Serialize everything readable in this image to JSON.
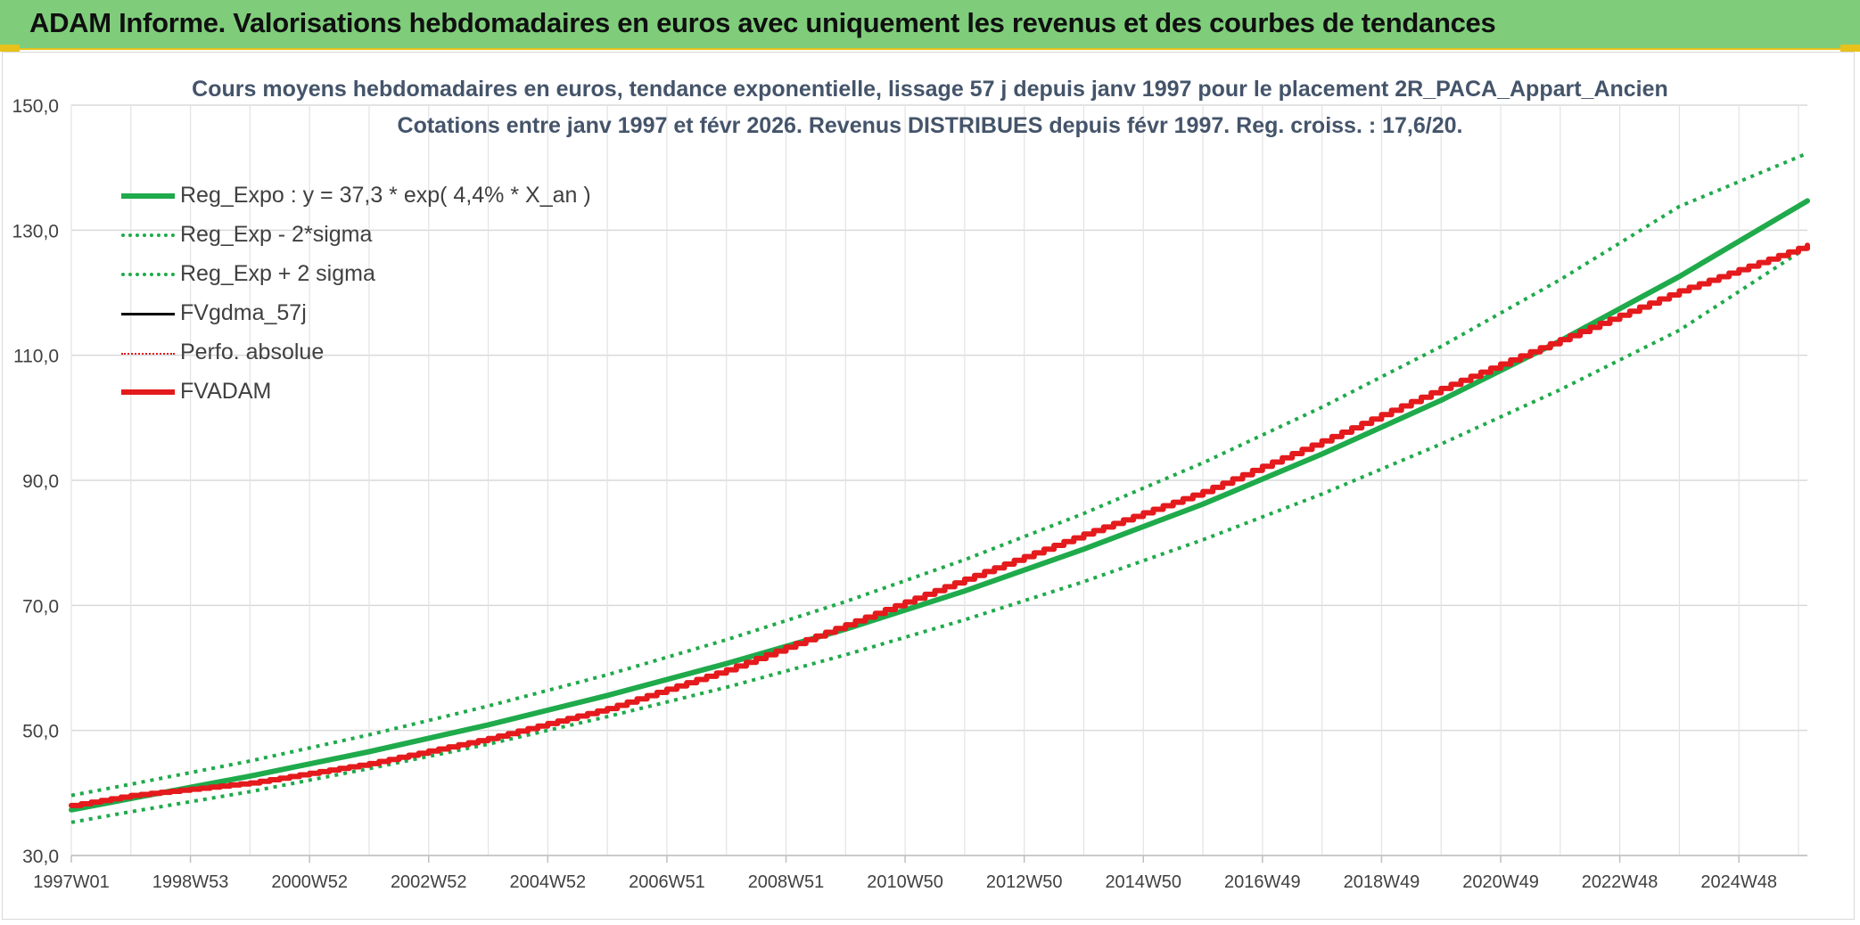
{
  "banner": {
    "title": "ADAM Informe. Valorisations hebdomadaires en euros avec uniquement les revenus et des courbes de tendances",
    "background": "#7fcd7b",
    "accent": "#e8c21a"
  },
  "chart_data": {
    "type": "line",
    "title": "Cours moyens hebdomadaires en euros, tendance exponentielle, lissage 57 j depuis janv 1997 pour le placement 2R_PACA_Appart_Ancien",
    "subtitle": "Cotations entre janv 1997 et févr 2026. Revenus DISTRIBUES depuis févr 1997. Reg. croiss. : 17,6/20.",
    "xlabel": "",
    "ylabel": "",
    "ylim": [
      30,
      150
    ],
    "yticks": [
      "30,0",
      "50,0",
      "70,0",
      "90,0",
      "110,0",
      "130,0",
      "150,0"
    ],
    "xlim": [
      1997.0,
      2026.15
    ],
    "xticks": [
      "1997W01",
      "1998W53",
      "2000W52",
      "2002W52",
      "2004W52",
      "2006W51",
      "2008W51",
      "2010W50",
      "2012W50",
      "2014W50",
      "2016W49",
      "2018W49",
      "2020W49",
      "2022W48",
      "2024W48"
    ],
    "grid": true,
    "legend_position": "top-left",
    "x": [
      1997,
      1998,
      2000,
      2002,
      2004,
      2006,
      2008,
      2010,
      2012,
      2014,
      2016,
      2018,
      2020,
      2022,
      2024,
      2026.15
    ],
    "series": [
      {
        "name": "Reg_Expo : y = 37,3 * exp( 4,4% *  X_an )",
        "color": "#1faa4b",
        "style": "solid-thick",
        "values": [
          37.3,
          39.1,
          42.7,
          46.6,
          50.9,
          55.6,
          60.7,
          66.2,
          72.3,
          79.0,
          86.2,
          94.2,
          102.8,
          112.3,
          122.6,
          134.7
        ]
      },
      {
        "name": "Reg_Exp - 2*sigma",
        "color": "#1faa4b",
        "style": "dotted",
        "values": [
          35.3,
          37.0,
          40.2,
          43.9,
          47.8,
          52.2,
          56.9,
          62.1,
          67.7,
          73.8,
          80.5,
          87.8,
          95.8,
          104.5,
          114.0,
          127.3
        ]
      },
      {
        "name": "Reg_Exp + 2 sigma",
        "color": "#1faa4b",
        "style": "dotted",
        "values": [
          39.6,
          41.4,
          45.1,
          49.3,
          53.9,
          58.9,
          64.5,
          70.6,
          77.3,
          84.7,
          92.8,
          101.7,
          111.4,
          122.1,
          133.8,
          142.3
        ]
      },
      {
        "name": "FVgdma_57j",
        "color": "#000000",
        "style": "solid",
        "values": [
          38.0,
          39.6,
          41.6,
          44.7,
          48.7,
          53.5,
          59.7,
          66.9,
          74.2,
          81.4,
          88.2,
          96.3,
          104.7,
          112.5,
          120.3,
          127.6
        ]
      },
      {
        "name": "Perfo. absolue",
        "color": "#e41a1c",
        "style": "dotted-thin",
        "values": [
          38.0,
          39.6,
          41.6,
          44.7,
          48.7,
          53.5,
          59.7,
          66.9,
          74.2,
          81.4,
          88.2,
          96.3,
          104.7,
          112.5,
          120.3,
          127.6
        ]
      },
      {
        "name": "FVADAM",
        "color": "#e41a1c",
        "style": "solid-thick",
        "values": [
          38.0,
          39.6,
          41.6,
          44.7,
          48.7,
          53.5,
          59.7,
          66.9,
          74.2,
          81.4,
          88.2,
          96.3,
          104.7,
          112.5,
          120.3,
          127.6
        ]
      }
    ]
  }
}
